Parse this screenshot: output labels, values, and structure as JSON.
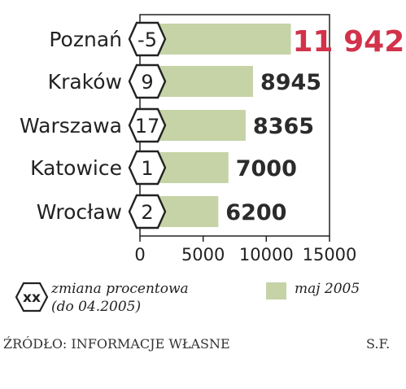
{
  "chart_data": {
    "type": "bar",
    "orientation": "horizontal",
    "categories": [
      "Poznań",
      "Kraków",
      "Warszawa",
      "Katowice",
      "Wrocław"
    ],
    "values": [
      11942,
      8945,
      8365,
      7000,
      6200
    ],
    "value_labels": [
      "11 942",
      "8945",
      "8365",
      "7000",
      "6200"
    ],
    "badges": [
      "-5",
      "9",
      "17",
      "1",
      "2"
    ],
    "xlim": [
      0,
      15000
    ],
    "xticks": [
      0,
      5000,
      10000,
      15000
    ],
    "grid": false,
    "highlight_index": 0,
    "colors": {
      "bar": "#c5d3a6",
      "highlight_label": "#d2324a",
      "frame": "#222222"
    }
  },
  "legend": {
    "badge_symbol": "xx",
    "badge_label_line1": "zmiana procentowa",
    "badge_label_line2": "(do 04.2005)",
    "bar_label": "maj 2005"
  },
  "footer": {
    "source": "ŹRÓDŁO: INFORMACJE WŁASNE",
    "author": "S.F."
  }
}
